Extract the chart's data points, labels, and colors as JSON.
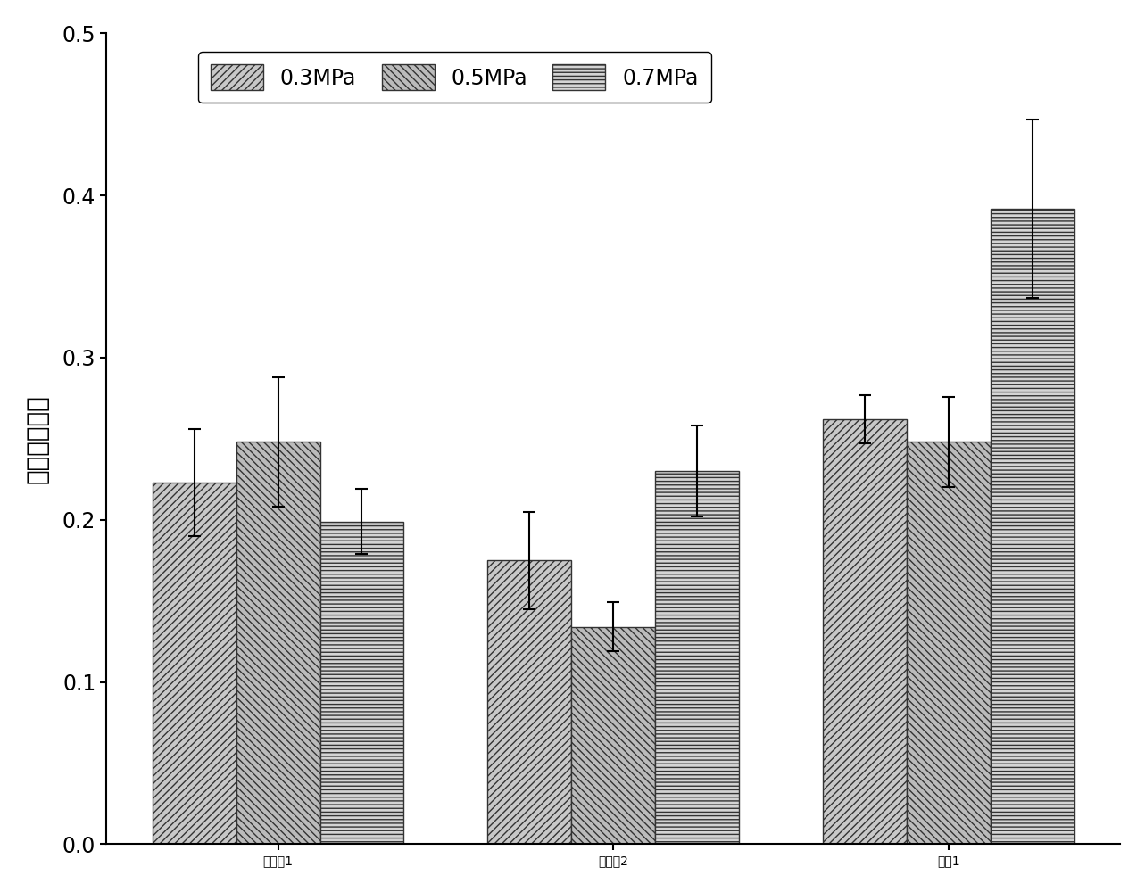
{
  "categories": [
    "实施例1",
    "实施例2",
    "对比1"
  ],
  "series": [
    {
      "label": "0.3MPa",
      "values": [
        0.223,
        0.175,
        0.262
      ],
      "errors": [
        0.033,
        0.03,
        0.015
      ],
      "hatch": "////",
      "facecolor": "#c8c8c8",
      "edgecolor": "#333333"
    },
    {
      "label": "0.5MPa",
      "values": [
        0.248,
        0.134,
        0.248
      ],
      "errors": [
        0.04,
        0.015,
        0.028
      ],
      "hatch": "\\\\\\\\",
      "facecolor": "#bbbbbb",
      "edgecolor": "#333333"
    },
    {
      "label": "0.7MPa",
      "values": [
        0.199,
        0.23,
        0.392
      ],
      "errors": [
        0.02,
        0.028,
        0.055
      ],
      "hatch": "----",
      "facecolor": "#d4d4d4",
      "edgecolor": "#333333"
    }
  ],
  "ylabel": "平均摩擦系数",
  "ylim": [
    0.0,
    0.5
  ],
  "yticks": [
    0.0,
    0.1,
    0.2,
    0.3,
    0.4,
    0.5
  ],
  "bar_width": 0.25,
  "title": "",
  "legend_fontsize": 17,
  "axis_label_fontsize": 20,
  "tick_fontsize": 17,
  "background_color": "#ffffff",
  "capsize": 5
}
